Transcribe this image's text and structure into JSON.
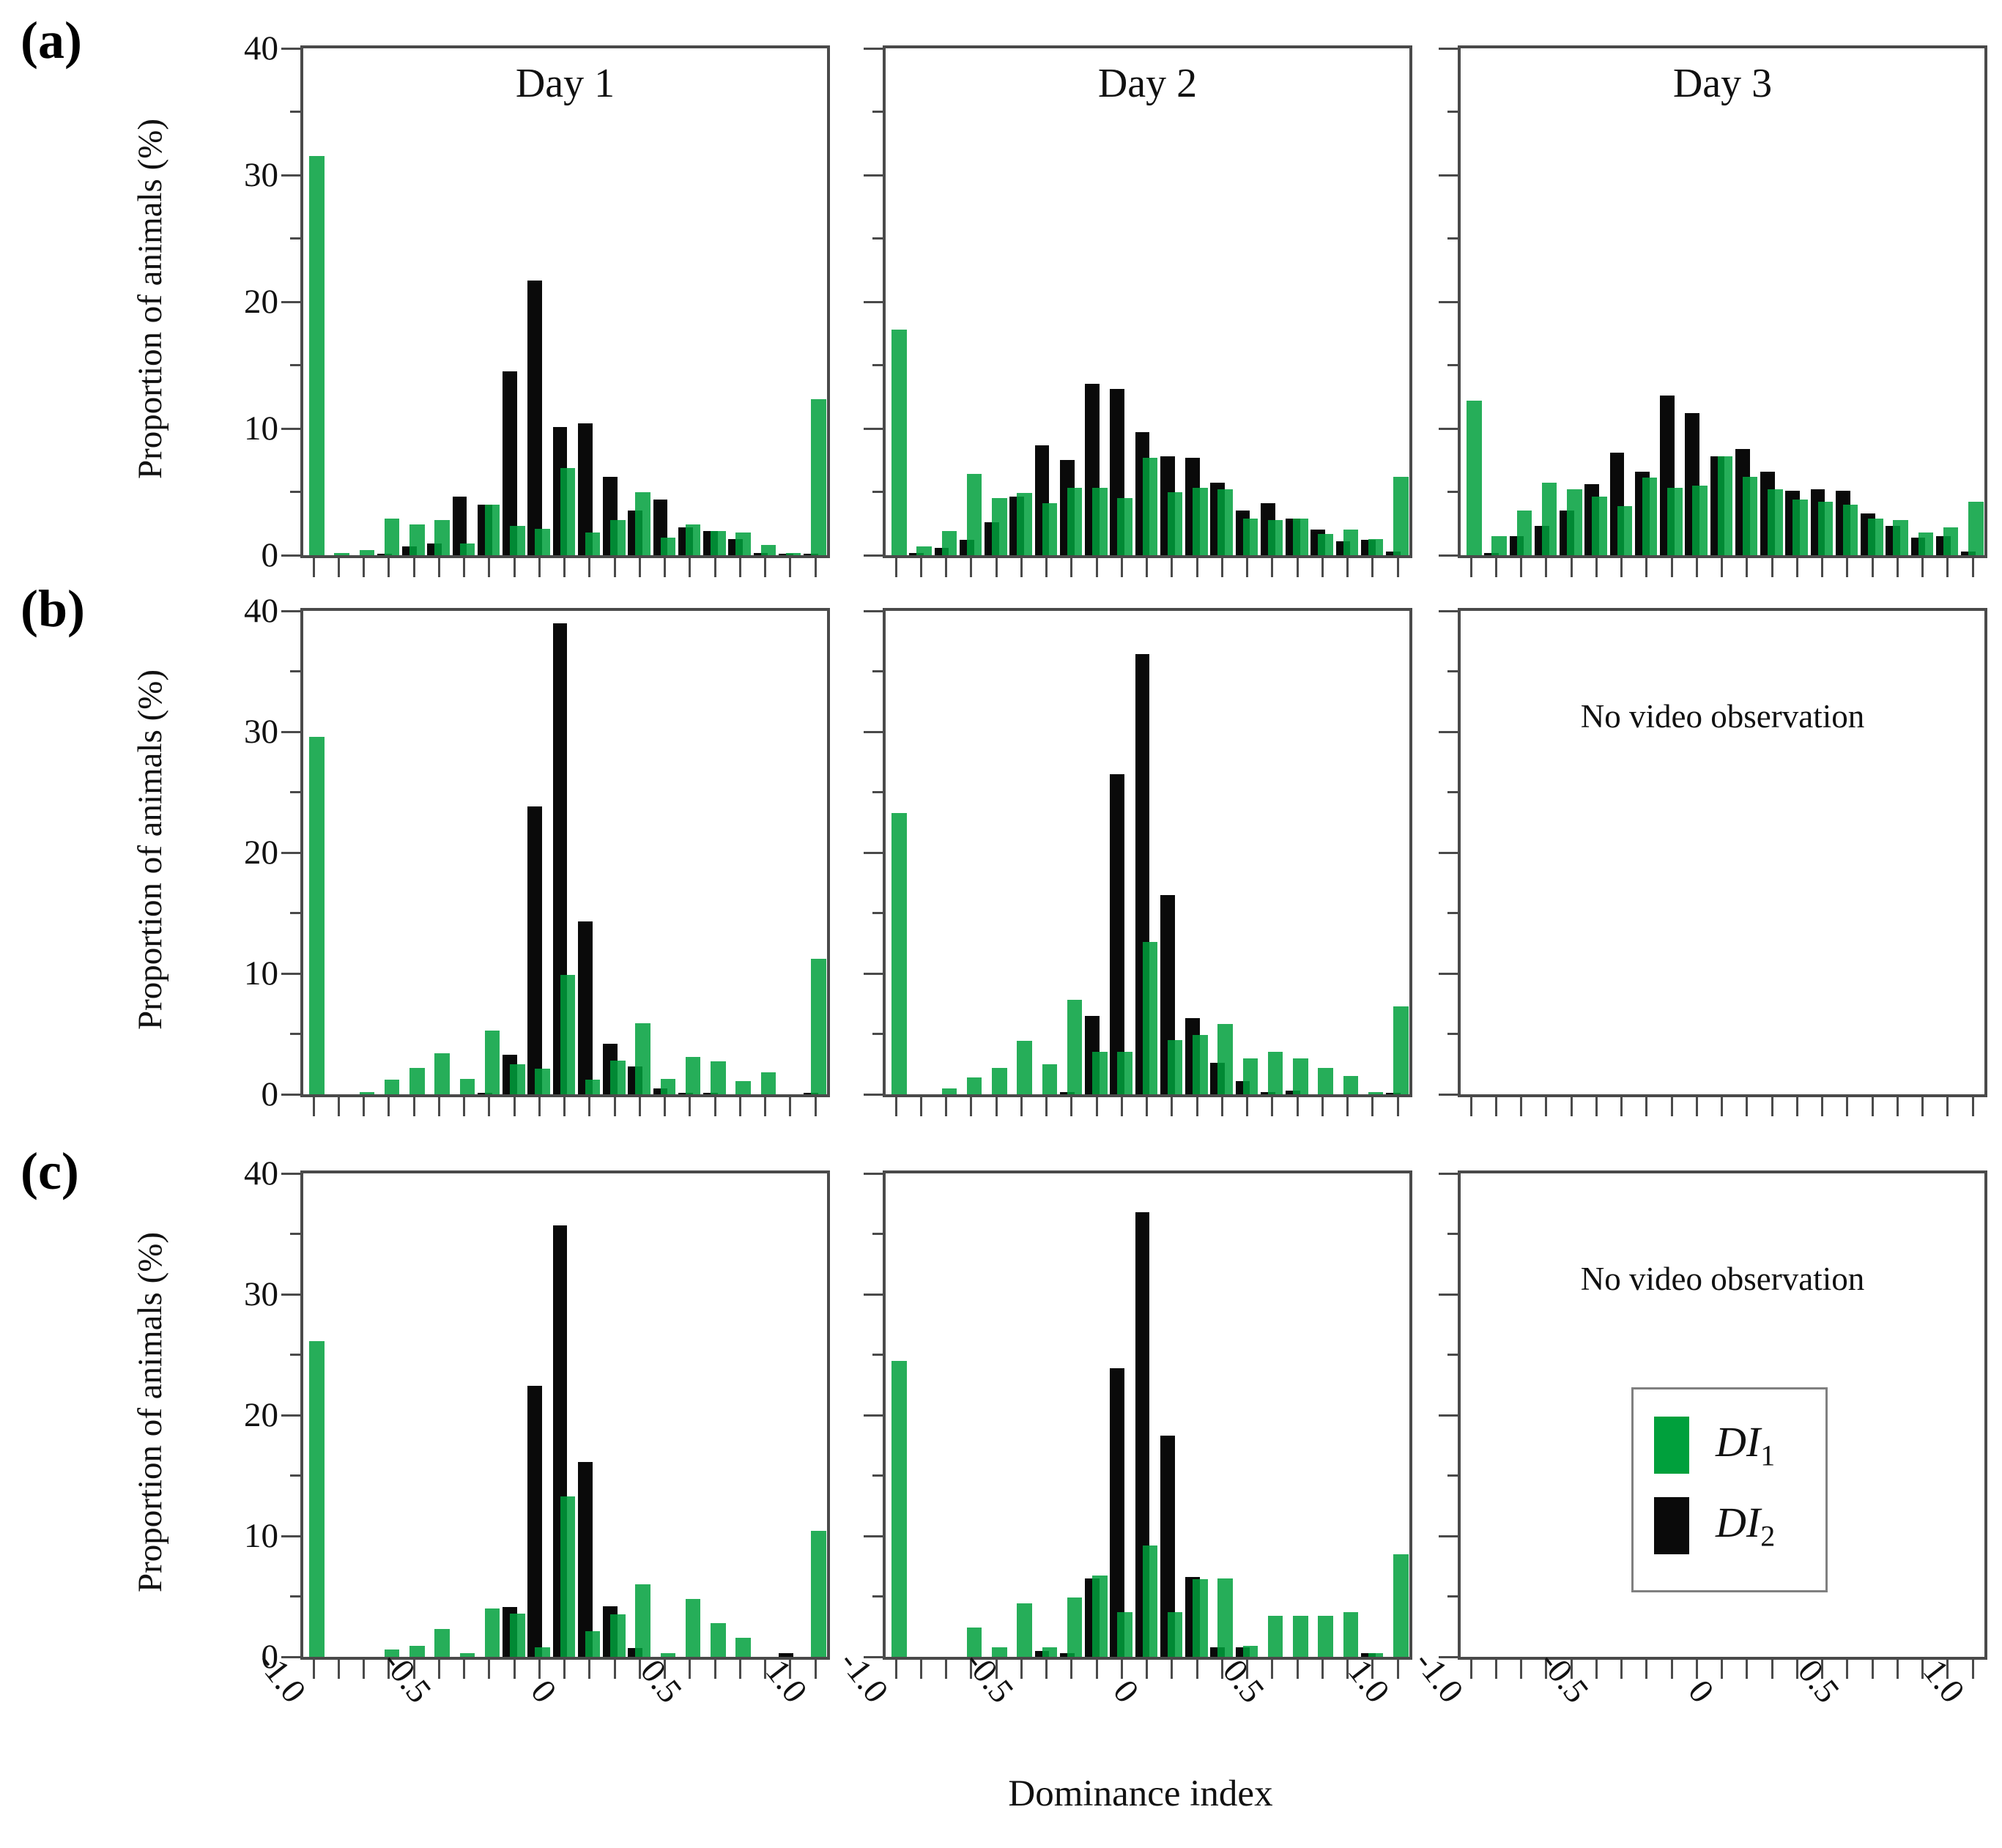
{
  "figure": {
    "row_labels": [
      "(a)",
      "(b)",
      "(c)"
    ],
    "col_titles": [
      "Day 1",
      "Day 2",
      "Day 3"
    ],
    "ylabel": "Proportion of animals (%)",
    "xlabel": "Dominance index",
    "no_video_text": "No video observation",
    "y_ticks": [
      "0",
      "10",
      "20",
      "30",
      "40"
    ],
    "y_tick_values": [
      0,
      10,
      20,
      30,
      40
    ],
    "y_minor_tick_values": [
      5,
      15,
      25,
      35
    ],
    "x_tick_labels": [
      "-1.0",
      "-0.5",
      "0",
      "0.5",
      "1.0"
    ],
    "colors": {
      "di1_green": "#00a344",
      "di2_black": "#0a0a0a",
      "axis": "#4a4a4a"
    }
  },
  "legend": {
    "items": [
      {
        "label_main": "DI",
        "label_sub": "1",
        "color": "#00a03c"
      },
      {
        "label_main": "DI",
        "label_sub": "2",
        "color": "#0a0a0a"
      }
    ]
  },
  "chart_data": [
    {
      "panel": "a-day1",
      "row": "(a)",
      "col": "Day 1",
      "type": "bar",
      "xlabel": "Dominance index",
      "ylabel": "Proportion of animals (%)",
      "ylim": [
        0,
        40
      ],
      "x_bins": [
        -1.0,
        -0.9,
        -0.8,
        -0.7,
        -0.6,
        -0.5,
        -0.4,
        -0.3,
        -0.2,
        -0.1,
        0,
        0.1,
        0.2,
        0.3,
        0.4,
        0.5,
        0.6,
        0.7,
        0.8,
        0.9,
        1.0
      ],
      "series": [
        {
          "name": "DI1",
          "values": [
            31.5,
            0.2,
            0.4,
            2.9,
            2.4,
            2.8,
            0.9,
            4.0,
            2.3,
            2.1,
            6.9,
            1.8,
            2.8,
            5.0,
            1.4,
            2.4,
            1.9,
            1.8,
            0.8,
            0.2,
            12.3
          ]
        },
        {
          "name": "DI2",
          "values": [
            0,
            0,
            0,
            0.1,
            0.7,
            0.9,
            4.6,
            4.0,
            14.5,
            21.7,
            10.1,
            10.4,
            6.2,
            3.5,
            4.4,
            2.2,
            1.9,
            1.3,
            0.2,
            0.1,
            0.1
          ]
        }
      ]
    },
    {
      "panel": "a-day2",
      "row": "(a)",
      "col": "Day 2",
      "type": "bar",
      "ylim": [
        0,
        40
      ],
      "x_bins": [
        -1.0,
        -0.9,
        -0.8,
        -0.7,
        -0.6,
        -0.5,
        -0.4,
        -0.3,
        -0.2,
        -0.1,
        0,
        0.1,
        0.2,
        0.3,
        0.4,
        0.5,
        0.6,
        0.7,
        0.8,
        0.9,
        1.0
      ],
      "series": [
        {
          "name": "DI1",
          "values": [
            17.8,
            0.7,
            1.9,
            6.4,
            4.5,
            4.9,
            4.1,
            5.3,
            5.3,
            4.5,
            7.7,
            5.0,
            5.3,
            5.2,
            2.9,
            2.8,
            2.9,
            1.7,
            2.0,
            1.3,
            6.2
          ]
        },
        {
          "name": "DI2",
          "values": [
            0,
            0.2,
            0.6,
            1.2,
            2.6,
            4.6,
            8.7,
            7.5,
            13.5,
            13.1,
            9.7,
            7.8,
            7.7,
            5.7,
            3.5,
            4.1,
            2.9,
            2.0,
            1.1,
            1.2,
            0.3
          ]
        }
      ]
    },
    {
      "panel": "a-day3",
      "row": "(a)",
      "col": "Day 3",
      "type": "bar",
      "ylim": [
        0,
        40
      ],
      "x_bins": [
        -1.0,
        -0.9,
        -0.8,
        -0.7,
        -0.6,
        -0.5,
        -0.4,
        -0.3,
        -0.2,
        -0.1,
        0,
        0.1,
        0.2,
        0.3,
        0.4,
        0.5,
        0.6,
        0.7,
        0.8,
        0.9,
        1.0
      ],
      "series": [
        {
          "name": "DI1",
          "values": [
            12.2,
            1.5,
            3.5,
            5.7,
            5.2,
            4.6,
            3.9,
            6.1,
            5.3,
            5.5,
            7.8,
            6.2,
            5.2,
            4.4,
            4.2,
            4.0,
            2.9,
            2.8,
            1.8,
            2.2,
            4.2
          ]
        },
        {
          "name": "DI2",
          "values": [
            0,
            0.2,
            1.5,
            2.3,
            3.5,
            5.6,
            8.1,
            6.6,
            12.6,
            11.2,
            7.8,
            8.4,
            6.6,
            5.1,
            5.2,
            5.1,
            3.3,
            2.3,
            1.4,
            1.5,
            0.3
          ]
        }
      ]
    },
    {
      "panel": "b-day1",
      "row": "(b)",
      "col": "Day 1",
      "type": "bar",
      "ylim": [
        0,
        40
      ],
      "x_bins": [
        -1.0,
        -0.9,
        -0.8,
        -0.7,
        -0.6,
        -0.5,
        -0.4,
        -0.3,
        -0.2,
        -0.1,
        0,
        0.1,
        0.2,
        0.3,
        0.4,
        0.5,
        0.6,
        0.7,
        0.8,
        0.9,
        1.0
      ],
      "series": [
        {
          "name": "DI1",
          "values": [
            29.6,
            0,
            0.2,
            1.2,
            2.2,
            3.4,
            1.3,
            5.3,
            2.5,
            2.1,
            9.9,
            1.2,
            2.8,
            5.9,
            1.3,
            3.1,
            2.7,
            1.1,
            1.8,
            0,
            11.2
          ]
        },
        {
          "name": "DI2",
          "values": [
            0,
            0,
            0,
            0,
            0,
            0,
            0,
            0.1,
            3.3,
            23.8,
            39.0,
            14.3,
            4.2,
            2.3,
            0.5,
            0.1,
            0.1,
            0,
            0,
            0,
            0.1
          ]
        }
      ]
    },
    {
      "panel": "b-day2",
      "row": "(b)",
      "col": "Day 2",
      "type": "bar",
      "ylim": [
        0,
        40
      ],
      "x_bins": [
        -1.0,
        -0.9,
        -0.8,
        -0.7,
        -0.6,
        -0.5,
        -0.4,
        -0.3,
        -0.2,
        -0.1,
        0,
        0.1,
        0.2,
        0.3,
        0.4,
        0.5,
        0.6,
        0.7,
        0.8,
        0.9,
        1.0
      ],
      "series": [
        {
          "name": "DI1",
          "values": [
            23.3,
            0,
            0.5,
            1.4,
            2.2,
            4.4,
            2.5,
            7.8,
            3.5,
            3.5,
            12.6,
            4.5,
            4.9,
            5.8,
            3.0,
            3.5,
            3.0,
            2.2,
            1.5,
            0.2,
            7.3
          ]
        },
        {
          "name": "DI2",
          "values": [
            0,
            0,
            0,
            0,
            0,
            0,
            0,
            0.2,
            6.5,
            26.5,
            36.4,
            16.5,
            6.3,
            2.6,
            1.1,
            0.2,
            0.3,
            0,
            0,
            0,
            0.1
          ]
        }
      ]
    },
    {
      "panel": "b-day3",
      "row": "(b)",
      "col": "Day 3",
      "type": "none",
      "note": "No video observation"
    },
    {
      "panel": "c-day1",
      "row": "(c)",
      "col": "Day 1",
      "type": "bar",
      "ylim": [
        0,
        40
      ],
      "x_bins": [
        -1.0,
        -0.9,
        -0.8,
        -0.7,
        -0.6,
        -0.5,
        -0.4,
        -0.3,
        -0.2,
        -0.1,
        0,
        0.1,
        0.2,
        0.3,
        0.4,
        0.5,
        0.6,
        0.7,
        0.8,
        0.9,
        1.0
      ],
      "series": [
        {
          "name": "DI1",
          "values": [
            26.1,
            0,
            0,
            0.6,
            0.9,
            2.3,
            0.3,
            4.0,
            3.6,
            0.8,
            13.3,
            2.1,
            3.5,
            6.0,
            0.3,
            4.8,
            2.8,
            1.6,
            0,
            0,
            10.4
          ]
        },
        {
          "name": "DI2",
          "values": [
            0,
            0,
            0,
            0,
            0,
            0,
            0,
            0,
            4.1,
            22.4,
            35.7,
            16.1,
            4.2,
            0.7,
            0,
            0,
            0,
            0,
            0,
            0.3,
            0
          ]
        }
      ]
    },
    {
      "panel": "c-day2",
      "row": "(c)",
      "col": "Day 2",
      "type": "bar",
      "ylim": [
        0,
        40
      ],
      "x_bins": [
        -1.0,
        -0.9,
        -0.8,
        -0.7,
        -0.6,
        -0.5,
        -0.4,
        -0.3,
        -0.2,
        -0.1,
        0,
        0.1,
        0.2,
        0.3,
        0.4,
        0.5,
        0.6,
        0.7,
        0.8,
        0.9,
        1.0
      ],
      "series": [
        {
          "name": "DI1",
          "values": [
            24.5,
            0,
            0,
            2.4,
            0.8,
            4.4,
            0.8,
            4.9,
            6.7,
            3.7,
            9.2,
            3.7,
            6.4,
            6.5,
            0.9,
            3.4,
            3.4,
            3.4,
            3.7,
            0.3,
            8.5
          ]
        },
        {
          "name": "DI2",
          "values": [
            0,
            0,
            0,
            0,
            0,
            0,
            0.5,
            0.3,
            6.5,
            23.9,
            36.8,
            18.3,
            6.6,
            0.8,
            0.8,
            0,
            0,
            0,
            0,
            0.3,
            0
          ]
        }
      ]
    },
    {
      "panel": "c-day3",
      "row": "(c)",
      "col": "Day 3",
      "type": "none",
      "note": "No video observation"
    }
  ]
}
